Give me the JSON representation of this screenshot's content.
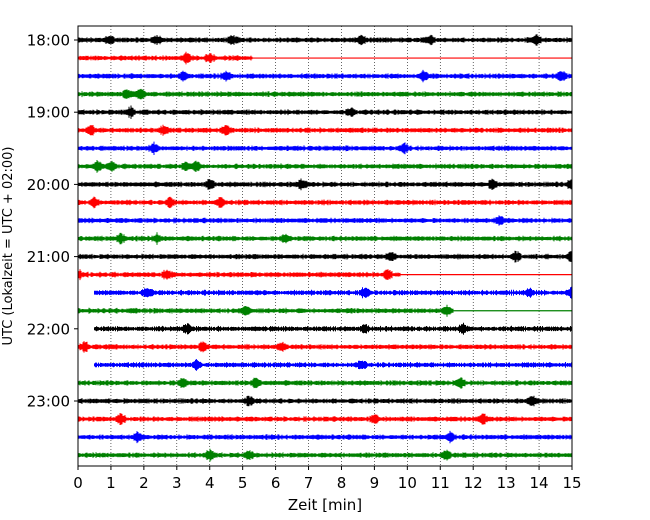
{
  "chart_data": {
    "type": "line",
    "xlabel": "Zeit  [min]",
    "ylabel": "UTC (Lokalzeit = UTC + 02:00)",
    "xlim": [
      0,
      15
    ],
    "x_ticks": [
      "0",
      "1",
      "2",
      "3",
      "4",
      "5",
      "6",
      "7",
      "8",
      "9",
      "10",
      "11",
      "12",
      "13",
      "14",
      "15"
    ],
    "y_tick_labels": [
      "18:00",
      "19:00",
      "20:00",
      "21:00",
      "22:00",
      "23:00"
    ],
    "grid": "vertical dotted",
    "traces_per_hour": 4,
    "minutes_per_trace": 15,
    "trace_colors": [
      "#000000",
      "#ff0000",
      "#0000ff",
      "#008000"
    ],
    "traces": [
      {
        "time": "18:00",
        "color": "#000000",
        "start": 0.0,
        "end": 15.0,
        "loud": [
          0.95,
          2.4,
          4.7,
          8.6,
          10.7,
          13.9
        ]
      },
      {
        "time": "18:15",
        "color": "#ff0000",
        "start": 0.0,
        "end": 5.3,
        "loud": [
          3.3,
          4.0
        ]
      },
      {
        "time": "18:30",
        "color": "#0000ff",
        "start": 0.0,
        "end": 15.0,
        "loud": [
          3.2,
          4.5,
          10.5,
          14.7
        ]
      },
      {
        "time": "18:45",
        "color": "#008000",
        "start": 0.0,
        "end": 15.0,
        "loud": [
          1.5,
          1.9
        ]
      },
      {
        "time": "19:00",
        "color": "#000000",
        "start": 0.0,
        "end": 15.0,
        "loud": [
          1.6,
          8.3
        ]
      },
      {
        "time": "19:15",
        "color": "#ff0000",
        "start": 0.0,
        "end": 15.0,
        "loud": [
          0.4,
          2.6,
          4.5
        ]
      },
      {
        "time": "19:30",
        "color": "#0000ff",
        "start": 0.0,
        "end": 15.0,
        "loud": [
          2.3,
          9.9
        ]
      },
      {
        "time": "19:45",
        "color": "#008000",
        "start": 0.0,
        "end": 15.0,
        "loud": [
          0.6,
          1.0,
          3.3,
          3.6
        ]
      },
      {
        "time": "20:00",
        "color": "#000000",
        "start": 0.0,
        "end": 15.0,
        "loud": [
          4.0,
          6.8,
          12.6,
          15.0
        ]
      },
      {
        "time": "20:15",
        "color": "#ff0000",
        "start": 0.0,
        "end": 15.0,
        "loud": [
          0.5,
          2.8,
          4.3
        ]
      },
      {
        "time": "20:30",
        "color": "#0000ff",
        "start": 0.0,
        "end": 15.0,
        "loud": [
          12.8
        ]
      },
      {
        "time": "20:45",
        "color": "#008000",
        "start": 0.0,
        "end": 15.0,
        "loud": [
          1.3,
          2.4,
          6.3
        ]
      },
      {
        "time": "21:00",
        "color": "#000000",
        "start": 0.0,
        "end": 15.0,
        "loud": [
          9.5,
          13.3,
          15.0
        ]
      },
      {
        "time": "21:15",
        "color": "#ff0000",
        "start": 0.0,
        "end": 9.8,
        "loud": [
          0.0,
          2.7,
          9.4
        ]
      },
      {
        "time": "21:30",
        "color": "#0000ff",
        "start": 0.5,
        "end": 15.0,
        "loud": [
          2.1,
          8.7,
          13.7,
          15.0
        ]
      },
      {
        "time": "21:45",
        "color": "#008000",
        "start": 0.0,
        "end": 11.4,
        "loud": [
          5.1,
          11.2
        ]
      },
      {
        "time": "22:00",
        "color": "#000000",
        "start": 0.5,
        "end": 15.0,
        "loud": [
          3.3,
          8.7,
          11.7
        ]
      },
      {
        "time": "22:15",
        "color": "#ff0000",
        "start": 0.0,
        "end": 15.0,
        "loud": [
          0.2,
          3.8,
          6.2
        ]
      },
      {
        "time": "22:30",
        "color": "#0000ff",
        "start": 0.5,
        "end": 15.0,
        "loud": [
          3.6,
          8.6
        ]
      },
      {
        "time": "22:45",
        "color": "#008000",
        "start": 0.0,
        "end": 15.0,
        "loud": [
          3.2,
          5.4,
          11.6
        ]
      },
      {
        "time": "23:00",
        "color": "#000000",
        "start": 0.0,
        "end": 15.0,
        "loud": [
          5.2,
          13.8
        ]
      },
      {
        "time": "23:15",
        "color": "#ff0000",
        "start": 0.0,
        "end": 15.0,
        "loud": [
          1.3,
          9.0,
          12.3
        ]
      },
      {
        "time": "23:30",
        "color": "#0000ff",
        "start": 0.0,
        "end": 15.0,
        "loud": [
          1.8,
          11.3
        ]
      },
      {
        "time": "23:45",
        "color": "#008000",
        "start": 0.0,
        "end": 15.0,
        "loud": [
          4.0,
          5.2,
          11.2
        ]
      }
    ]
  }
}
